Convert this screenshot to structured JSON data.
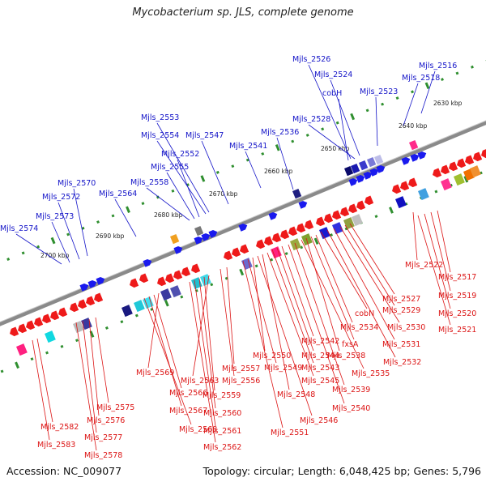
{
  "title": "Mycobacterium sp. JLS, complete genome",
  "footer": {
    "accession": "Accession: NC_009077",
    "summary": "Topology: circular; Length: 6,048,425 bp; Genes: 5,796"
  },
  "colors": {
    "upper_strand_labels": "#1414c8",
    "lower_strand_labels": "#dc1414",
    "backbone": "#8a8a8a",
    "forward_arrows": "#1a1aee",
    "reverse_arrows": "#ee1a1a",
    "tick_dots": "#2f8f2f"
  },
  "scale_labels": [
    "2630 kbp",
    "2640 kbp",
    "2650 kbp",
    "2660 kbp",
    "2670 kbp",
    "2680 kbp",
    "2690 kbp",
    "2700 kbp"
  ],
  "upper_labels": [
    "Mjls_2516",
    "Mjls_2518",
    "Mjls_2523",
    "Mjls_2524",
    "Mjls_2526",
    "cobH",
    "Mjls_2528",
    "Mjls_2536",
    "Mjls_2541",
    "Mjls_2547",
    "Mjls_2553",
    "Mjls_2554",
    "Mjls_2552",
    "Mjls_2555",
    "Mjls_2558",
    "Mjls_2564",
    "Mjls_2570",
    "Mjls_2572",
    "Mjls_2573",
    "Mjls_2574"
  ],
  "lower_labels": [
    "Mjls_2517",
    "Mjls_2519",
    "Mjls_2520",
    "Mjls_2521",
    "Mjls_2522",
    "Mjls_2527",
    "Mjls_2529",
    "Mjls_2530",
    "Mjls_2531",
    "Mjls_2532",
    "cobN",
    "Mjls_2534",
    "fxsA",
    "Mjls_2538",
    "Mjls_2535",
    "Mjls_2539",
    "Mjls_2540",
    "Mjls_2542",
    "Mjls_2544",
    "Mjls_2543",
    "Mjls_2545",
    "Mjls_2548",
    "Mjls_2546",
    "Mjls_2550",
    "Mjls_2549",
    "Mjls_2551",
    "Mjls_2557",
    "Mjls_2556",
    "Mjls_2563",
    "Mjls_2559",
    "Mjls_2560",
    "Mjls_2561",
    "Mjls_2562",
    "Mjls_2569",
    "Mjls_2566",
    "Mjls_2567",
    "Mjls_2568",
    "Mjls_2575",
    "Mjls_2576",
    "Mjls_2577",
    "Mjls_2578",
    "Mjls_2582",
    "Mjls_2583"
  ]
}
